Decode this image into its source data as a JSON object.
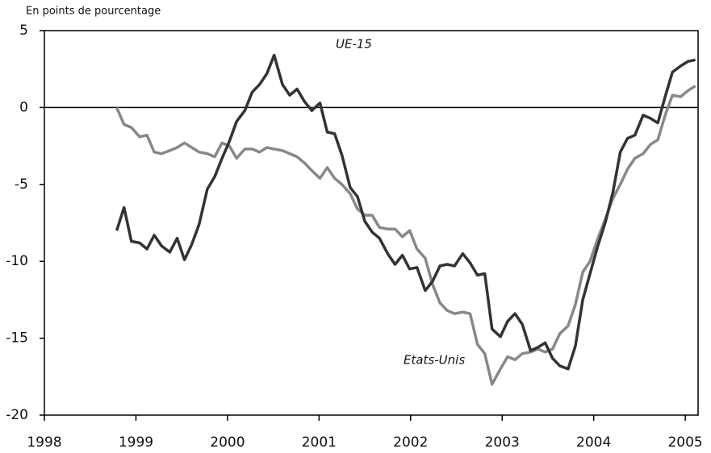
{
  "chart_data": {
    "type": "line",
    "ylabel": "En points de pourcentage",
    "annotations": [
      "UE-15",
      "Etats-Unis"
    ],
    "x": [
      1998.79,
      1998.87,
      1998.95,
      1999.04,
      1999.12,
      1999.2,
      1999.28,
      1999.37,
      1999.45,
      1999.53,
      1999.61,
      1999.69,
      1999.78,
      1999.86,
      1999.94,
      2000.02,
      2000.1,
      2000.19,
      2000.27,
      2000.35,
      2000.43,
      2000.51,
      2000.6,
      2000.68,
      2000.76,
      2000.84,
      2000.92,
      2001.01,
      2001.09,
      2001.17,
      2001.25,
      2001.34,
      2001.42,
      2001.5,
      2001.58,
      2001.66,
      2001.75,
      2001.83,
      2001.91,
      2001.99,
      2002.07,
      2002.16,
      2002.24,
      2002.32,
      2002.4,
      2002.48,
      2002.57,
      2002.65,
      2002.73,
      2002.81,
      2002.89,
      2002.98,
      2003.06,
      2003.14,
      2003.22,
      2003.31,
      2003.39,
      2003.47,
      2003.55,
      2003.63,
      2003.72,
      2003.8,
      2003.88,
      2003.96,
      2004.04,
      2004.13,
      2004.21,
      2004.29,
      2004.37,
      2004.45,
      2004.54,
      2004.62,
      2004.7,
      2004.78,
      2004.86,
      2004.95,
      2005.03,
      2005.11
    ],
    "series": [
      {
        "name": "UE-15",
        "color": "#333333",
        "values": [
          -8.0,
          -6.5,
          -8.7,
          -8.8,
          -9.2,
          -8.3,
          -9.0,
          -9.4,
          -8.5,
          -9.9,
          -8.9,
          -7.6,
          -5.3,
          -4.5,
          -3.3,
          -2.2,
          -0.9,
          -0.2,
          1.0,
          1.5,
          2.2,
          3.4,
          1.5,
          0.8,
          1.2,
          0.4,
          -0.2,
          0.3,
          -1.6,
          -1.7,
          -3.1,
          -5.2,
          -5.8,
          -7.4,
          -8.1,
          -8.5,
          -9.5,
          -10.2,
          -9.6,
          -10.5,
          -10.4,
          -11.9,
          -11.3,
          -10.3,
          -10.2,
          -10.3,
          -9.5,
          -10.1,
          -10.9,
          -10.8,
          -14.4,
          -14.9,
          -13.9,
          -13.4,
          -14.1,
          -15.8,
          -15.6,
          -15.3,
          -16.3,
          -16.8,
          -17.0,
          -15.5,
          -12.5,
          -10.8,
          -9.1,
          -7.4,
          -5.5,
          -2.9,
          -2.0,
          -1.8,
          -0.5,
          -0.7,
          -1.0,
          0.7,
          2.3,
          2.7,
          3.0,
          3.1
        ]
      },
      {
        "name": "Etats-Unis",
        "color": "#888888",
        "values": [
          0.0,
          -1.1,
          -1.3,
          -1.9,
          -1.8,
          -2.9,
          -3.0,
          -2.8,
          -2.6,
          -2.3,
          -2.6,
          -2.9,
          -3.0,
          -3.2,
          -2.3,
          -2.5,
          -3.3,
          -2.7,
          -2.7,
          -2.9,
          -2.6,
          -2.7,
          -2.8,
          -3.0,
          -3.2,
          -3.6,
          -4.1,
          -4.6,
          -3.9,
          -4.6,
          -5.0,
          -5.6,
          -6.6,
          -7.0,
          -7.0,
          -7.8,
          -7.9,
          -7.9,
          -8.4,
          -8.0,
          -9.2,
          -9.8,
          -11.5,
          -12.7,
          -13.2,
          -13.4,
          -13.3,
          -13.4,
          -15.4,
          -16.0,
          -18.0,
          -17.0,
          -16.2,
          -16.4,
          -16.0,
          -15.9,
          -15.7,
          -15.9,
          -15.7,
          -14.7,
          -14.2,
          -12.8,
          -10.7,
          -10.0,
          -8.6,
          -7.2,
          -5.9,
          -5.0,
          -4.0,
          -3.3,
          -3.0,
          -2.4,
          -2.1,
          -0.5,
          0.8,
          0.7,
          1.1,
          1.4
        ]
      }
    ],
    "xlim": [
      1998,
      2005.14
    ],
    "xticks": [
      1998,
      1999,
      2000,
      2001,
      2002,
      2003,
      2004,
      2005
    ],
    "ylim": [
      -20,
      5
    ],
    "yticks": [
      -20,
      -15,
      -10,
      -5,
      0,
      5
    ],
    "zero_line": true
  }
}
